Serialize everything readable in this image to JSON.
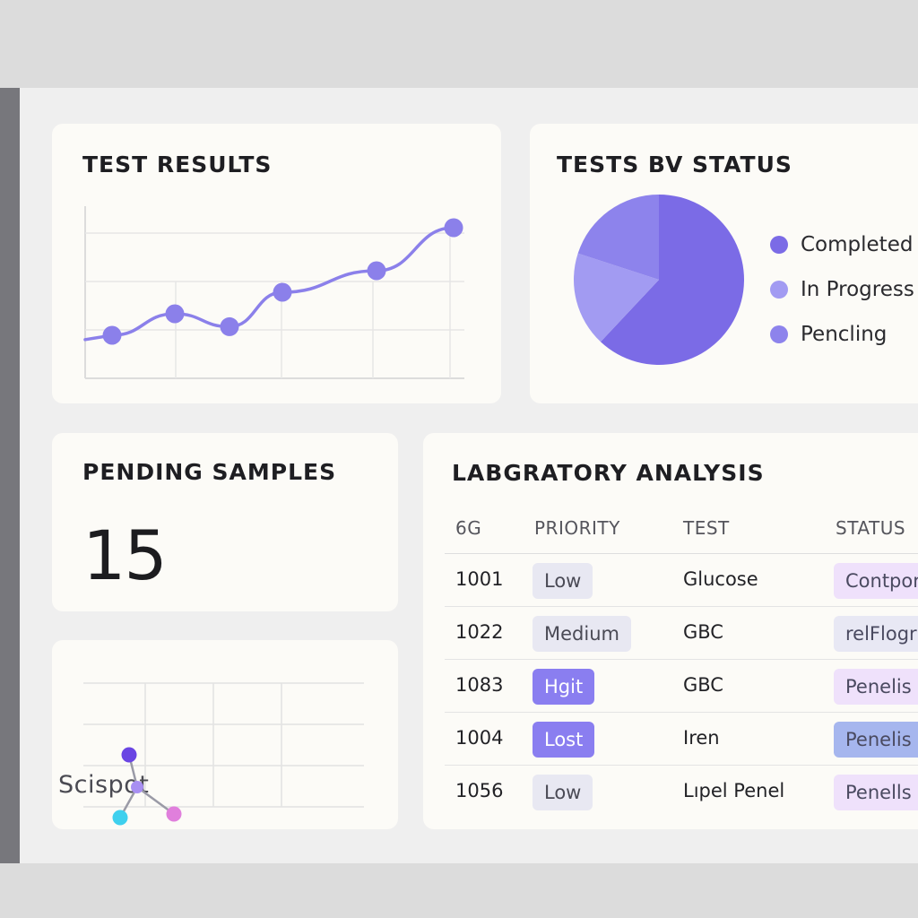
{
  "test_results": {
    "title": "TEST RESULTS",
    "chart_data": {
      "type": "line",
      "x": [
        1,
        2,
        3,
        4,
        5,
        6
      ],
      "series": [
        {
          "values": [
            2.0,
            3.0,
            2.4,
            4.0,
            5.0,
            7.0
          ]
        }
      ],
      "ylim": [
        0,
        8
      ],
      "grid": true,
      "color": "#8b80ea"
    }
  },
  "tests_by_status": {
    "title": "TESTS BV STATUS",
    "chart_data": {
      "type": "pie",
      "categories": [
        "Completed",
        "In Progress",
        "Pencling"
      ],
      "values": [
        62,
        18,
        20
      ],
      "colors": [
        "#7b6be6",
        "#a29bf2",
        "#8d83ec"
      ],
      "legend": "right"
    }
  },
  "pending_samples": {
    "title": "PENDING SAMPLES",
    "count": "15"
  },
  "logo": {
    "text": "Scispot",
    "colors": [
      "#6a45e3",
      "#3fd0ee",
      "#e07fdc",
      "#a88ff2"
    ]
  },
  "lab_analysis": {
    "title": "LABGRATORY ANALYSIS",
    "columns": [
      "6G",
      "PRIORITY",
      "TEST",
      "STATUS"
    ],
    "rows": [
      {
        "id": "1001",
        "priority": "Low",
        "test": "Glucose",
        "status": "Contpor"
      },
      {
        "id": "1022",
        "priority": "Medium",
        "test": "GBC",
        "status": "relFlogr"
      },
      {
        "id": "1083",
        "priority": "Hgit",
        "test": "GBC",
        "status": "Penelis"
      },
      {
        "id": "1004",
        "priority": "Lost",
        "test": "Iren",
        "status": "Penelis"
      },
      {
        "id": "1056",
        "priority": "Low",
        "test": "Lıpel Penel",
        "status": "Penells"
      }
    ],
    "priority_styles": {
      "Low": {
        "bg": "#e8e8f2",
        "fg": "#4a4a55"
      },
      "Medium": {
        "bg": "#e8e8f2",
        "fg": "#4a4a55"
      },
      "Hgit": {
        "bg": "#8a7ef0",
        "fg": "#ffffff"
      },
      "Lost": {
        "bg": "#8a7ef0",
        "fg": "#ffffff"
      }
    },
    "status_colors": [
      "#efe1fb",
      "#e8e8f4",
      "#efe1fb",
      "#a6b6ee",
      "#efe1fb"
    ]
  }
}
